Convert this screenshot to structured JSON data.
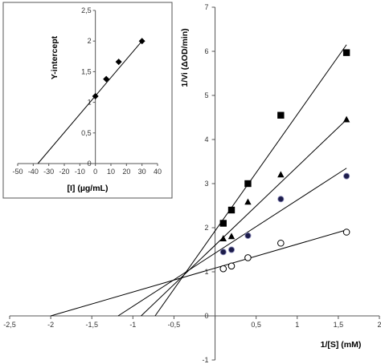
{
  "chart_data": [
    {
      "type": "scatter",
      "title": "",
      "xlabel": "1/[S] (mM)",
      "ylabel": "1/Vi (ΔOD/min)",
      "xlim": [
        -2.5,
        2
      ],
      "ylim": [
        -1,
        7
      ],
      "xticks": [
        -2.5,
        -2,
        -1.5,
        -1,
        -0.5,
        0,
        0.5,
        1,
        1.5,
        2
      ],
      "yticks": [
        -1,
        0,
        1,
        2,
        3,
        4,
        5,
        6,
        7
      ],
      "xtick_labels": [
        "-2,5",
        "-2",
        "-1,5",
        "-1",
        "-0,5",
        "0",
        "0,5",
        "1",
        "1,5",
        "2"
      ],
      "ytick_labels": [
        "-1",
        "0",
        "1",
        "2",
        "3",
        "4",
        "5",
        "6",
        "7"
      ],
      "grid": false,
      "series": [
        {
          "marker": "open-circle",
          "x": [
            0.1,
            0.2,
            0.4,
            0.8,
            1.6
          ],
          "y": [
            1.07,
            1.13,
            1.32,
            1.65,
            1.9
          ],
          "fit_line": {
            "x": [
              -2.0,
              1.6
            ],
            "y": [
              0.0,
              1.95
            ]
          }
        },
        {
          "marker": "dark-circle",
          "x": [
            0.1,
            0.2,
            0.4,
            0.8,
            1.6
          ],
          "y": [
            1.45,
            1.5,
            1.82,
            2.65,
            3.17
          ],
          "fit_line": {
            "x": [
              -1.18,
              1.6
            ],
            "y": [
              0.0,
              3.35
            ]
          }
        },
        {
          "marker": "triangle",
          "x": [
            0.1,
            0.2,
            0.4,
            0.8,
            1.6
          ],
          "y": [
            1.75,
            1.8,
            2.58,
            3.2,
            4.45
          ],
          "fit_line": {
            "x": [
              -0.9,
              1.6
            ],
            "y": [
              0.0,
              4.45
            ]
          }
        },
        {
          "marker": "square",
          "x": [
            0.1,
            0.2,
            0.4,
            0.8,
            1.6
          ],
          "y": [
            2.1,
            2.4,
            3.0,
            4.55,
            5.97
          ],
          "fit_line": {
            "x": [
              -0.73,
              1.6
            ],
            "y": [
              0.0,
              6.15
            ]
          }
        }
      ]
    },
    {
      "type": "scatter",
      "title": "",
      "xlabel": "[I] (µg/mL)",
      "ylabel": "Y-intercept",
      "xlim": [
        -50,
        40
      ],
      "ylim": [
        0,
        2.5
      ],
      "xticks": [
        -50,
        -40,
        -30,
        -20,
        -10,
        0,
        10,
        20,
        30,
        40
      ],
      "yticks": [
        0.5,
        1,
        1.5,
        2,
        2.5
      ],
      "xtick_labels": [
        "-50",
        "-40",
        "-30",
        "-20",
        "-10",
        "0",
        "10",
        "20",
        "30",
        "40"
      ],
      "ytick_labels": [
        "0,5",
        "1",
        "1,5",
        "2",
        "2,5"
      ],
      "zero_label": "0",
      "grid": false,
      "series": [
        {
          "marker": "diamond",
          "x": [
            0,
            7,
            15,
            30
          ],
          "y": [
            1.1,
            1.38,
            1.66,
            2.0
          ],
          "fit_line": {
            "x": [
              -37,
              30
            ],
            "y": [
              0.0,
              2.0
            ]
          }
        }
      ]
    }
  ]
}
